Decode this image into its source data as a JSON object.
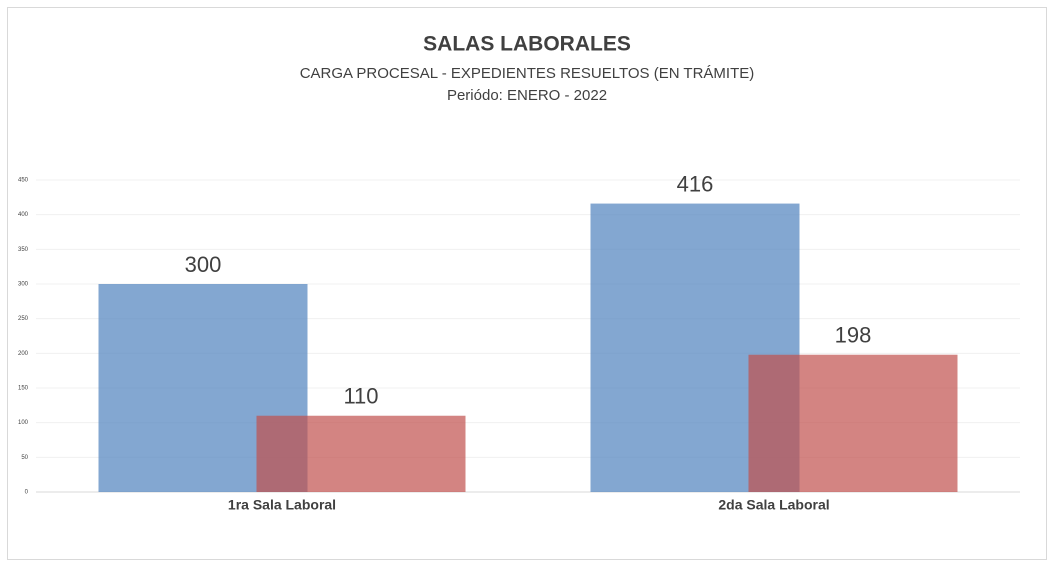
{
  "chart_data": {
    "type": "bar",
    "title": "SALAS LABORALES",
    "subtitle": "CARGA  PROCESAL - EXPEDIENTES RESUELTOS (EN TRÁMITE)",
    "period": "Periódo: ENERO - 2022",
    "categories": [
      "1ra Sala Laboral",
      "2da Sala Laboral"
    ],
    "series": [
      {
        "color": "#4f81bd",
        "values": [
          300,
          416
        ]
      },
      {
        "color": "#c0504d",
        "values": [
          110,
          198
        ]
      }
    ],
    "ylim": [
      0,
      450
    ],
    "yticks": [
      0,
      50,
      100,
      150,
      200,
      250,
      300,
      350,
      400,
      450
    ],
    "grid": true
  }
}
